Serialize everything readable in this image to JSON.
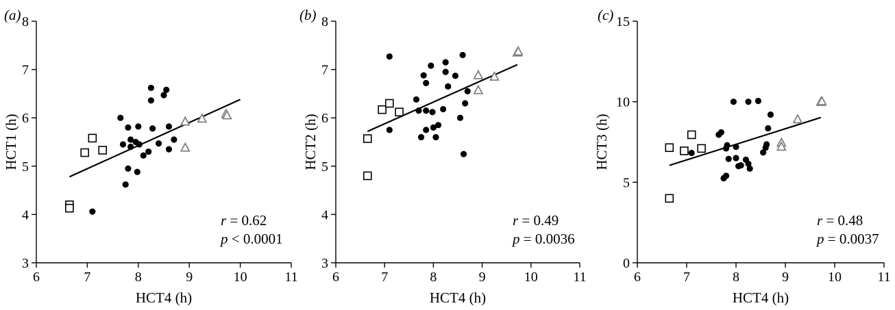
{
  "chart_data": [
    {
      "type": "scatter",
      "panel_label": "(a)",
      "xlabel": "HCT4 (h)",
      "ylabel": "HCT1 (h)",
      "xlim": [
        6,
        11
      ],
      "ylim": [
        3,
        8
      ],
      "xticks": [
        6,
        7,
        8,
        9,
        10,
        11
      ],
      "yticks": [
        3,
        4,
        5,
        6,
        7,
        8
      ],
      "annotation": {
        "r": "0.62",
        "p_relation": "<",
        "p": "0.0001"
      },
      "fit_line": {
        "x": [
          6.65,
          10.0
        ],
        "y": [
          4.78,
          6.38
        ]
      },
      "series": [
        {
          "marker": "filled-circle",
          "color": "#000000",
          "points": [
            [
              7.1,
              5.6
            ],
            [
              7.1,
              4.06
            ],
            [
              7.65,
              6.0
            ],
            [
              7.7,
              5.45
            ],
            [
              7.75,
              4.62
            ],
            [
              7.8,
              5.8
            ],
            [
              7.8,
              4.95
            ],
            [
              7.85,
              5.4
            ],
            [
              7.85,
              5.55
            ],
            [
              7.95,
              5.5
            ],
            [
              7.98,
              4.88
            ],
            [
              8.0,
              5.82
            ],
            [
              8.02,
              5.45
            ],
            [
              8.1,
              5.22
            ],
            [
              8.2,
              5.3
            ],
            [
              8.25,
              6.62
            ],
            [
              8.25,
              6.36
            ],
            [
              8.28,
              5.78
            ],
            [
              8.4,
              5.47
            ],
            [
              8.5,
              6.47
            ],
            [
              8.55,
              6.58
            ],
            [
              8.6,
              5.35
            ],
            [
              8.6,
              5.82
            ],
            [
              8.7,
              5.55
            ]
          ]
        },
        {
          "marker": "open-square",
          "color": "#000000",
          "points": [
            [
              6.65,
              4.2
            ],
            [
              6.65,
              4.13
            ],
            [
              6.95,
              5.28
            ],
            [
              7.1,
              5.58
            ],
            [
              7.3,
              5.33
            ]
          ]
        },
        {
          "marker": "open-triangle",
          "color": "#808080",
          "points": [
            [
              8.92,
              5.92
            ],
            [
              8.92,
              5.38
            ],
            [
              9.25,
              5.98
            ],
            [
              9.72,
              6.08
            ],
            [
              9.74,
              6.05
            ]
          ]
        }
      ]
    },
    {
      "type": "scatter",
      "panel_label": "(b)",
      "xlabel": "HCT4 (h)",
      "ylabel": "HCT2 (h)",
      "xlim": [
        6,
        11
      ],
      "ylim": [
        3,
        8
      ],
      "xticks": [
        6,
        7,
        8,
        9,
        10,
        11
      ],
      "yticks": [
        3,
        4,
        5,
        6,
        7,
        8
      ],
      "annotation": {
        "r": "0.49",
        "p_relation": "=",
        "p": "0.0036"
      },
      "fit_line": {
        "x": [
          6.65,
          9.72
        ],
        "y": [
          5.72,
          7.1
        ]
      },
      "series": [
        {
          "marker": "filled-circle",
          "color": "#000000",
          "points": [
            [
              7.1,
              7.27
            ],
            [
              7.1,
              5.75
            ],
            [
              7.65,
              6.38
            ],
            [
              7.7,
              6.15
            ],
            [
              7.75,
              5.6
            ],
            [
              7.8,
              6.88
            ],
            [
              7.85,
              6.72
            ],
            [
              7.85,
              6.15
            ],
            [
              7.85,
              5.75
            ],
            [
              7.95,
              7.08
            ],
            [
              7.98,
              6.12
            ],
            [
              8.0,
              5.8
            ],
            [
              8.05,
              5.6
            ],
            [
              8.1,
              5.85
            ],
            [
              8.2,
              6.18
            ],
            [
              8.25,
              7.15
            ],
            [
              8.25,
              6.95
            ],
            [
              8.3,
              6.65
            ],
            [
              8.45,
              6.87
            ],
            [
              8.55,
              6.0
            ],
            [
              8.6,
              7.3
            ],
            [
              8.62,
              5.25
            ],
            [
              8.65,
              6.3
            ],
            [
              8.7,
              6.55
            ]
          ]
        },
        {
          "marker": "open-square",
          "color": "#000000",
          "points": [
            [
              6.65,
              5.57
            ],
            [
              6.65,
              4.8
            ],
            [
              6.95,
              6.17
            ],
            [
              7.1,
              6.3
            ],
            [
              7.3,
              6.12
            ]
          ]
        },
        {
          "marker": "open-triangle",
          "color": "#808080",
          "points": [
            [
              8.92,
              6.88
            ],
            [
              8.92,
              6.57
            ],
            [
              9.25,
              6.85
            ],
            [
              9.72,
              7.35
            ],
            [
              9.74,
              7.37
            ]
          ]
        }
      ]
    },
    {
      "type": "scatter",
      "panel_label": "(c)",
      "xlabel": "HCT4 (h)",
      "ylabel": "HCT3 (h)",
      "xlim": [
        6,
        11
      ],
      "ylim": [
        0,
        15
      ],
      "xticks": [
        6,
        7,
        8,
        9,
        10,
        11
      ],
      "yticks": [
        0,
        5,
        10,
        15
      ],
      "annotation": {
        "r": "0.48",
        "p_relation": "=",
        "p": "0.0037"
      },
      "fit_line": {
        "x": [
          6.65,
          9.72
        ],
        "y": [
          6.05,
          9.02
        ]
      },
      "series": [
        {
          "marker": "filled-circle",
          "color": "#000000",
          "points": [
            [
              7.1,
              8.0
            ],
            [
              7.1,
              6.82
            ],
            [
              7.65,
              7.95
            ],
            [
              7.7,
              8.1
            ],
            [
              7.75,
              5.25
            ],
            [
              7.8,
              5.4
            ],
            [
              7.8,
              7.1
            ],
            [
              7.82,
              7.3
            ],
            [
              7.85,
              6.45
            ],
            [
              7.95,
              10.0
            ],
            [
              8.0,
              7.2
            ],
            [
              8.0,
              6.5
            ],
            [
              8.05,
              6.0
            ],
            [
              8.1,
              6.05
            ],
            [
              8.2,
              6.4
            ],
            [
              8.25,
              10.0
            ],
            [
              8.25,
              6.15
            ],
            [
              8.28,
              5.85
            ],
            [
              8.45,
              10.05
            ],
            [
              8.55,
              6.85
            ],
            [
              8.6,
              7.15
            ],
            [
              8.62,
              7.35
            ],
            [
              8.65,
              8.35
            ],
            [
              8.7,
              9.2
            ]
          ]
        },
        {
          "marker": "open-square",
          "color": "#000000",
          "points": [
            [
              6.65,
              7.15
            ],
            [
              6.65,
              4.0
            ],
            [
              6.95,
              6.95
            ],
            [
              7.1,
              7.95
            ],
            [
              7.3,
              7.1
            ]
          ]
        },
        {
          "marker": "open-triangle",
          "color": "#808080",
          "points": [
            [
              8.92,
              7.45
            ],
            [
              8.92,
              7.2
            ],
            [
              9.25,
              8.9
            ],
            [
              9.72,
              9.98
            ],
            [
              9.74,
              10.02
            ]
          ]
        }
      ]
    }
  ]
}
